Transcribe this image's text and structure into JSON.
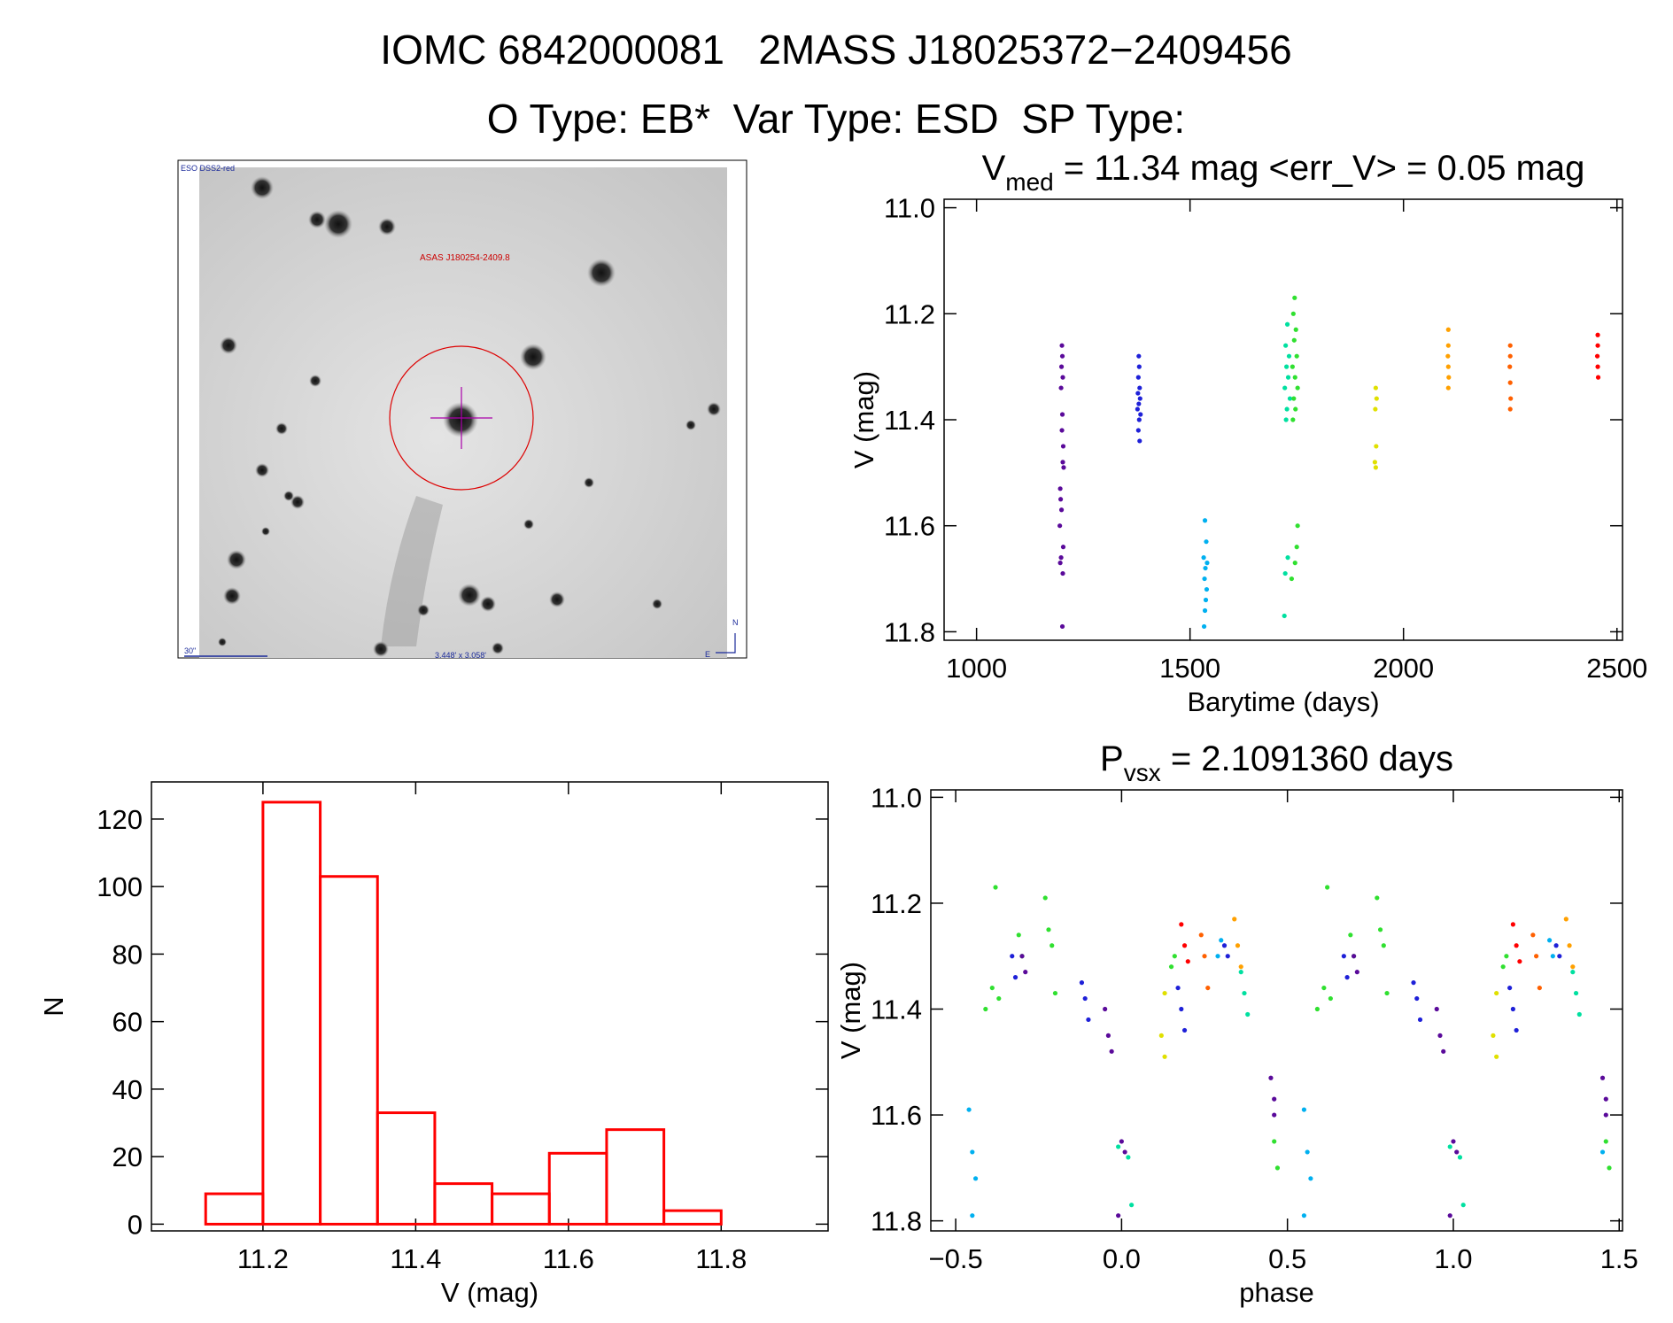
{
  "header": {
    "title": "IOMC 6842000081   2MASS J18025372−2409456",
    "subtitle": "O Type: EB*  Var Type: ESD  SP Type:"
  },
  "image_panel": {
    "survey": "ESO DSS2-red",
    "target": "ASAS J180254-2409.8",
    "scale": "30\"",
    "size": "3.448' x 3.058'",
    "north": "N",
    "east": "E"
  },
  "chart_data": [
    {
      "type": "scatter",
      "title": {
        "main": "V",
        "sub": "med",
        "rest": " = 11.34 mag <err_V> = 0.05 mag"
      },
      "xlabel": "Barytime (days)",
      "ylabel": "V (mag)",
      "xlim": [
        924,
        2513
      ],
      "ylim": [
        11.816,
        10.984
      ],
      "xticks": [
        1000,
        1500,
        2000,
        2500
      ],
      "yticks": [
        {
          "value": 11.0,
          "label": "11.0"
        },
        11.2,
        11.4,
        11.6,
        11.8
      ],
      "series": [
        {
          "color": "#5a0a9a",
          "x": [
            1200,
            1201,
            1199,
            1202,
            1198,
            1201,
            1200,
            1203,
            1202,
            1204,
            1196,
            1197,
            1199,
            1195,
            1203,
            1198,
            1196,
            1202,
            1201
          ],
          "values": [
            11.26,
            11.28,
            11.3,
            11.32,
            11.34,
            11.39,
            11.42,
            11.45,
            11.48,
            11.49,
            11.53,
            11.55,
            11.57,
            11.6,
            11.64,
            11.66,
            11.67,
            11.69,
            11.79
          ]
        },
        {
          "color": "#1e20d8",
          "x": [
            1380,
            1381,
            1379,
            1382,
            1378,
            1383,
            1380,
            1377,
            1384,
            1381,
            1379,
            1382
          ],
          "values": [
            11.28,
            11.3,
            11.32,
            11.34,
            11.35,
            11.36,
            11.37,
            11.38,
            11.39,
            11.4,
            11.42,
            11.44
          ]
        },
        {
          "color": "#00b0f0",
          "x": [
            1535,
            1538,
            1532,
            1540,
            1536,
            1534,
            1539,
            1537,
            1535,
            1533
          ],
          "values": [
            11.59,
            11.63,
            11.66,
            11.67,
            11.68,
            11.7,
            11.72,
            11.74,
            11.76,
            11.79
          ]
        },
        {
          "color": "#00e0a0",
          "x": [
            1728,
            1724,
            1732,
            1726,
            1730,
            1722,
            1734,
            1727,
            1725,
            1729,
            1723,
            1721
          ],
          "values": [
            11.22,
            11.26,
            11.28,
            11.3,
            11.32,
            11.34,
            11.36,
            11.38,
            11.4,
            11.66,
            11.69,
            11.77
          ]
        },
        {
          "color": "#30e030",
          "x": [
            1745,
            1742,
            1748,
            1744,
            1750,
            1740,
            1746,
            1752,
            1743,
            1747,
            1741,
            1752,
            1750,
            1746,
            1738
          ],
          "values": [
            11.17,
            11.2,
            11.23,
            11.25,
            11.28,
            11.3,
            11.32,
            11.34,
            11.36,
            11.38,
            11.4,
            11.6,
            11.64,
            11.67,
            11.7
          ]
        },
        {
          "color": "#e0e000",
          "x": [
            1935,
            1937,
            1934,
            1936,
            1933,
            1935
          ],
          "values": [
            11.34,
            11.36,
            11.38,
            11.45,
            11.48,
            11.49
          ]
        },
        {
          "color": "#ffa000",
          "x": [
            2105,
            2105,
            2104,
            2105,
            2106,
            2105
          ],
          "values": [
            11.23,
            11.26,
            11.28,
            11.3,
            11.32,
            11.34
          ]
        },
        {
          "color": "#ff6000",
          "x": [
            2250,
            2250,
            2249,
            2250,
            2251,
            2250
          ],
          "values": [
            11.26,
            11.28,
            11.3,
            11.33,
            11.36,
            11.38
          ]
        },
        {
          "color": "#ff0000",
          "x": [
            2455,
            2455,
            2454,
            2455,
            2456
          ],
          "values": [
            11.24,
            11.26,
            11.28,
            11.3,
            11.32
          ]
        }
      ]
    },
    {
      "type": "histogram",
      "xlabel": "V (mag)",
      "ylabel": "N",
      "color": "#ff0000",
      "xlim": [
        11.054,
        11.94
      ],
      "ylim": [
        -2,
        131
      ],
      "xticks": [
        11.2,
        11.4,
        11.6,
        11.8
      ],
      "yticks": [
        0,
        20,
        40,
        60,
        80,
        100,
        120
      ],
      "bins": [
        11.125,
        11.2,
        11.275,
        11.35,
        11.425,
        11.5,
        11.575,
        11.65,
        11.725,
        11.8
      ],
      "values": [
        9,
        125,
        103,
        33,
        12,
        9,
        21,
        28,
        4
      ]
    },
    {
      "type": "scatter",
      "title": {
        "main": "P",
        "sub": "vsx",
        "rest": " = 2.1091360 days"
      },
      "xlabel": "phase",
      "ylabel": "V (mag)",
      "xlim": [
        -0.575,
        1.51
      ],
      "ylim": [
        11.819,
        10.986
      ],
      "xticks": [
        {
          "value": -0.5,
          "label": "−0.5"
        },
        {
          "value": 0.0,
          "label": "0.0"
        },
        0.5,
        {
          "value": 1.0,
          "label": "1.0"
        },
        1.5
      ],
      "yticks": [
        {
          "value": 11.0,
          "label": "11.0"
        },
        11.2,
        11.4,
        11.6,
        11.8
      ],
      "series": [
        {
          "color": "#30e030",
          "x": [
            -0.41,
            -0.39,
            -0.38,
            -0.37,
            -0.31,
            -0.3,
            -0.23,
            -0.22,
            -0.21,
            -0.2,
            0.15,
            0.16,
            0.46,
            0.47,
            0.59,
            0.61,
            0.62,
            0.63,
            0.69,
            0.7,
            0.77,
            0.78,
            0.79,
            0.8,
            1.15,
            1.16,
            1.46,
            1.47
          ],
          "values": [
            11.4,
            11.36,
            11.17,
            11.38,
            11.26,
            11.3,
            11.19,
            11.25,
            11.28,
            11.37,
            11.32,
            11.3,
            11.65,
            11.7,
            11.4,
            11.36,
            11.17,
            11.38,
            11.26,
            11.3,
            11.19,
            11.25,
            11.28,
            11.37,
            11.32,
            11.3,
            11.65,
            11.7
          ]
        },
        {
          "color": "#00e0a0",
          "x": [
            -0.01,
            0.02,
            0.03,
            0.36,
            0.37,
            0.38,
            0.99,
            1.02,
            1.03,
            1.36,
            1.37,
            1.38
          ],
          "values": [
            11.66,
            11.68,
            11.77,
            11.33,
            11.37,
            11.41,
            11.66,
            11.68,
            11.77,
            11.33,
            11.37,
            11.41
          ]
        },
        {
          "color": "#5a0a9a",
          "x": [
            -0.05,
            -0.04,
            -0.03,
            0.0,
            0.01,
            -0.01,
            0.45,
            0.46,
            0.46,
            -0.3,
            -0.29,
            0.95,
            0.96,
            0.97,
            1.0,
            1.01,
            0.99,
            1.45,
            1.46,
            1.46,
            0.7,
            0.71
          ],
          "values": [
            11.4,
            11.45,
            11.48,
            11.65,
            11.67,
            11.79,
            11.53,
            11.57,
            11.6,
            11.3,
            11.33,
            11.4,
            11.45,
            11.48,
            11.65,
            11.67,
            11.79,
            11.53,
            11.57,
            11.6,
            11.3,
            11.33
          ]
        },
        {
          "color": "#1e20d8",
          "x": [
            -0.12,
            -0.11,
            -0.1,
            0.17,
            0.18,
            0.19,
            -0.33,
            -0.32,
            0.31,
            0.32,
            0.88,
            0.89,
            0.9,
            1.17,
            1.18,
            1.19,
            0.67,
            0.68,
            1.31,
            1.32
          ],
          "values": [
            11.35,
            11.38,
            11.42,
            11.36,
            11.4,
            11.44,
            11.3,
            11.34,
            11.28,
            11.3,
            11.35,
            11.38,
            11.42,
            11.36,
            11.4,
            11.44,
            11.3,
            11.34,
            11.28,
            11.3
          ]
        },
        {
          "color": "#00b0f0",
          "x": [
            -0.46,
            -0.45,
            -0.44,
            -0.45,
            0.55,
            0.56,
            0.57,
            0.55,
            0.3,
            0.29,
            1.29,
            1.3,
            1.45
          ],
          "values": [
            11.59,
            11.67,
            11.72,
            11.79,
            11.59,
            11.67,
            11.72,
            11.79,
            11.27,
            11.3,
            11.27,
            11.3,
            11.67
          ]
        },
        {
          "color": "#e0e000",
          "x": [
            0.13,
            0.12,
            0.13,
            1.13,
            1.12,
            1.13
          ],
          "values": [
            11.37,
            11.45,
            11.49,
            11.37,
            11.45,
            11.49
          ]
        },
        {
          "color": "#ffa000",
          "x": [
            0.34,
            0.35,
            0.36,
            1.34,
            1.35,
            1.36
          ],
          "values": [
            11.23,
            11.28,
            11.32,
            11.23,
            11.28,
            11.32
          ]
        },
        {
          "color": "#ff6000",
          "x": [
            0.24,
            0.25,
            0.26,
            1.24,
            1.25,
            1.26
          ],
          "values": [
            11.26,
            11.3,
            11.36,
            11.26,
            11.3,
            11.36
          ]
        },
        {
          "color": "#ff0000",
          "x": [
            0.18,
            0.19,
            0.2,
            1.18,
            1.19,
            1.2
          ],
          "values": [
            11.24,
            11.28,
            11.31,
            11.24,
            11.28,
            11.31
          ]
        }
      ]
    }
  ]
}
